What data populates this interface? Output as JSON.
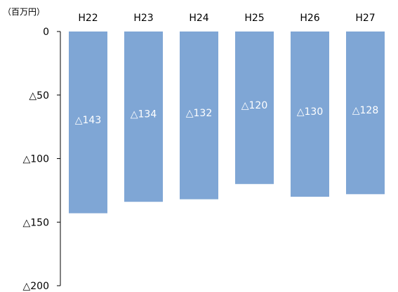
{
  "chart_data": {
    "type": "bar",
    "unit_label": "（百万円）",
    "categories": [
      "H22",
      "H23",
      "H24",
      "H25",
      "H26",
      "H27"
    ],
    "values": [
      -143,
      -134,
      -132,
      -120,
      -130,
      -128
    ],
    "data_labels": [
      "△143",
      "△134",
      "△132",
      "△120",
      "△130",
      "△128"
    ],
    "y_ticks": [
      0,
      -50,
      -100,
      -150,
      -200
    ],
    "y_tick_labels": [
      "0",
      "△50",
      "△100",
      "△150",
      "△200"
    ],
    "ylim": [
      -200,
      0
    ],
    "grid": false,
    "legend": "none",
    "category_axis_position": "top",
    "bar_color": "#7fa6d5"
  }
}
